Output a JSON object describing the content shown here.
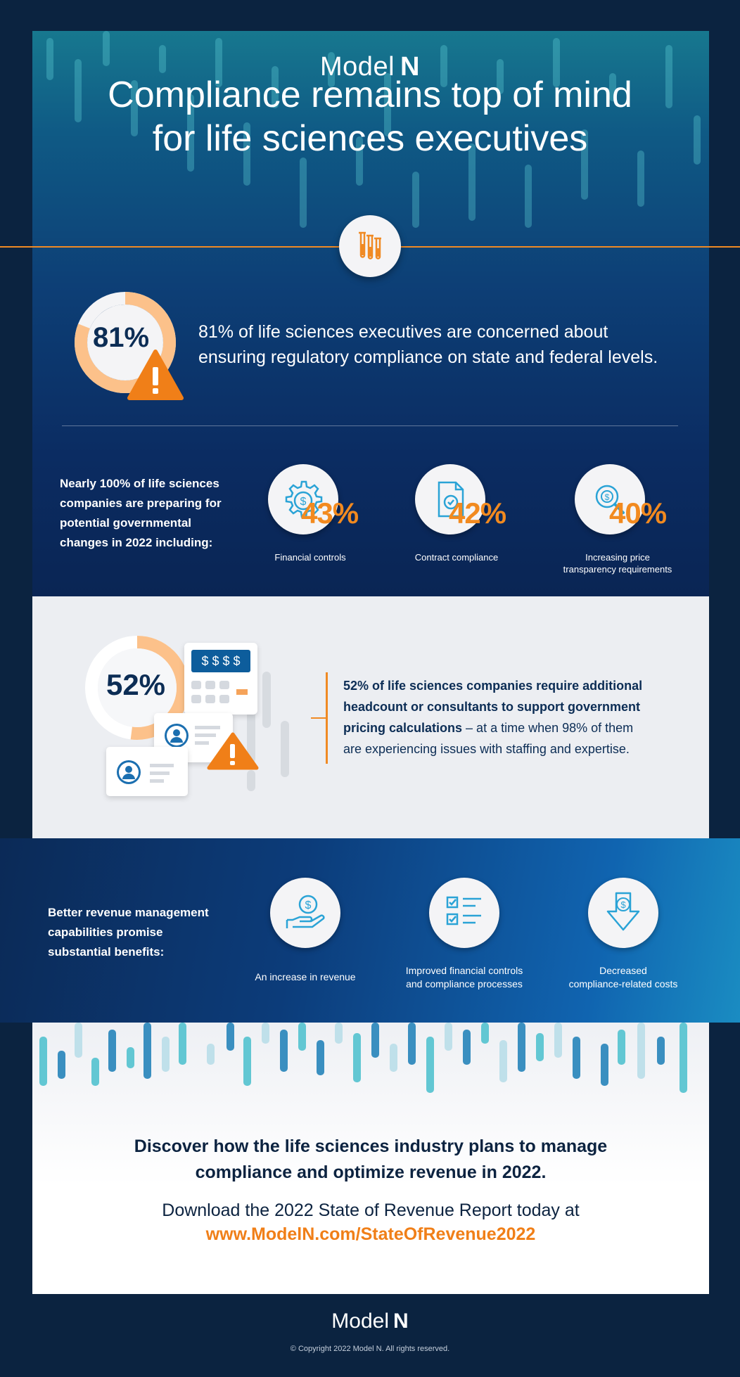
{
  "brand": {
    "name": "Model",
    "name_bold": "N"
  },
  "headline": {
    "line1": "Compliance remains top of mind",
    "line2": "for life sciences executives"
  },
  "stat81": {
    "value": "81%",
    "fraction": 0.81,
    "text_line1": "81% of life sciences executives are concerned about",
    "text_line2": "ensuring regulatory compliance on state and federal levels."
  },
  "preparing": {
    "lines": [
      "Nearly 100% of life sciences",
      "companies are preparing for",
      "potential governmental",
      "changes in 2022 including:"
    ],
    "items": [
      {
        "value": "43%",
        "label": "Financial controls",
        "label2": ""
      },
      {
        "value": "42%",
        "label": "Contract compliance",
        "label2": ""
      },
      {
        "value": "40%",
        "label": "Increasing price",
        "label2": "transparency requirements"
      }
    ]
  },
  "stat52": {
    "value": "52%",
    "fraction": 0.52,
    "calculator_display": "$ $ $ $",
    "line1_bold": "52% of life sciences companies require additional",
    "line2_bold": "headcount or consultants to support government",
    "line3_bold": "pricing calculations",
    "line3_rest": " – at a time when 98% of them",
    "line4": "are experiencing issues with staffing and expertise."
  },
  "benefits": {
    "lines": [
      "Better revenue management",
      "capabilities promise",
      "substantial benefits:"
    ],
    "items": [
      {
        "label": "An increase in revenue",
        "label2": ""
      },
      {
        "label": "Improved financial controls",
        "label2": "and compliance processes"
      },
      {
        "label": "Decreased",
        "label2": "compliance-related costs"
      }
    ]
  },
  "cta": {
    "line1": "Discover how the life sciences industry plans to manage",
    "line2": "compliance and optimize revenue in 2022.",
    "download": "Download the 2022 State of Revenue Report today at",
    "url": "www.ModelN.com/StateOfRevenue2022"
  },
  "footer": {
    "name": "Model",
    "name_bold": "N",
    "copyright": "© Copyright 2022 Model N. All rights reserved."
  },
  "colors": {
    "accent": "#f08a24",
    "navy": "#0c2d55",
    "ring": "#fcc18a"
  },
  "icons": [
    "test-tubes-icon",
    "warning-icon",
    "gear-dollar-icon",
    "document-check-icon",
    "magnifier-dollar-icon",
    "calculator-icon",
    "id-card-icon",
    "hand-dollar-icon",
    "checklist-icon",
    "dollar-arrow-down-icon"
  ]
}
